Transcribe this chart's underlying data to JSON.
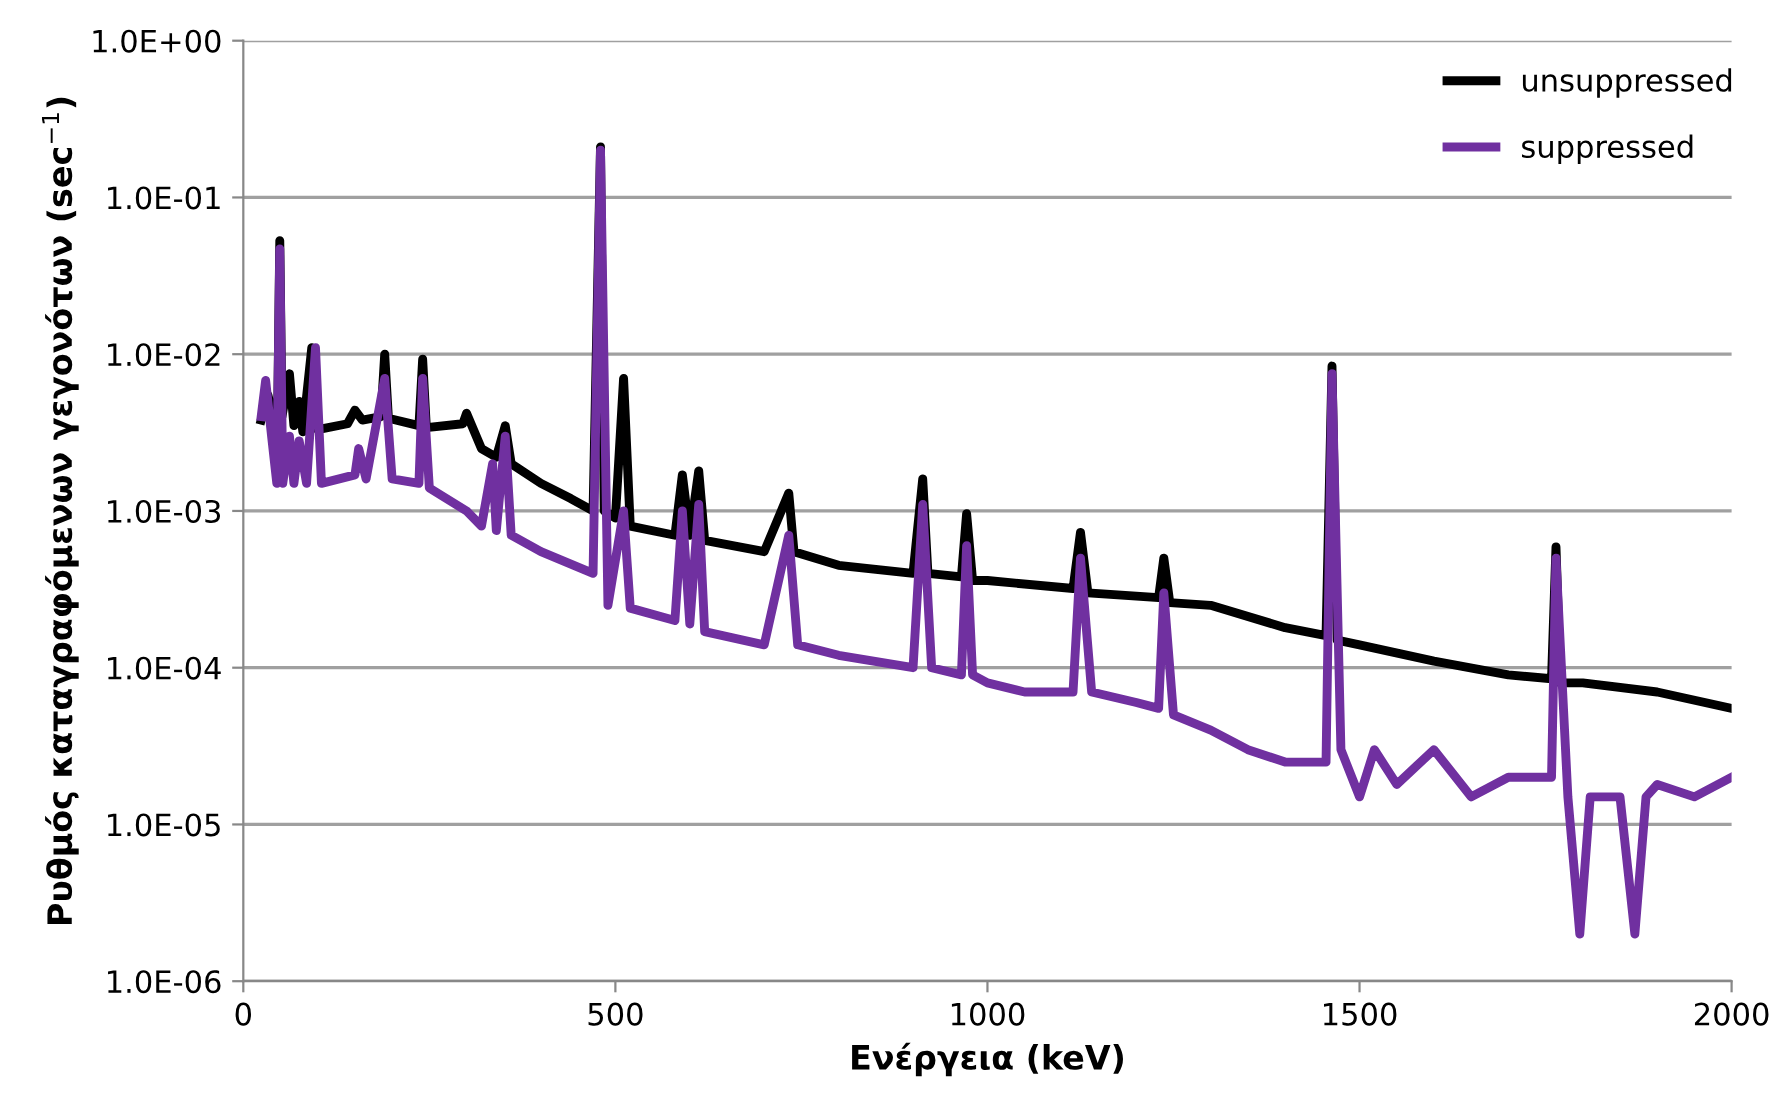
{
  "chart_data": {
    "type": "line",
    "xlabel": "Ενέργεια (keV)",
    "ylabel": "Ρυθμός καταγραφόμενων γεγονότων (sec$^{−1}$)",
    "log": "y",
    "grid": "y",
    "legend": "top right",
    "marker": "none",
    "line_style": "solid",
    "xlim": [
      0,
      2000
    ],
    "xticks": [
      0,
      500,
      1000,
      1500,
      2000
    ],
    "ylim": [
      1e-06,
      1
    ],
    "yticks": [
      {
        "value": 1e-06,
        "label": "1.0E-06"
      },
      {
        "value": 1e-05,
        "label": "1.0E-05"
      },
      {
        "value": 0.0001,
        "label": "1.0E-04"
      },
      {
        "value": 0.001,
        "label": "1.0E-03"
      },
      {
        "value": 0.01,
        "label": "1.0E-02"
      },
      {
        "value": 0.1,
        "label": "1.0E-01"
      },
      {
        "value": 1,
        "label": "1.0E+00"
      }
    ],
    "series": [
      {
        "name": "unsuppressed",
        "color": "#000000",
        "x": [
          24,
          33,
          40,
          46,
          49,
          52,
          62,
          68,
          75,
          80,
          92,
          100,
          140,
          150,
          160,
          185,
          190,
          195,
          236,
          241,
          246,
          295,
          300,
          320,
          340,
          352,
          360,
          400,
          440,
          470,
          480,
          485,
          500,
          511,
          520,
          580,
          590,
          600,
          612,
          620,
          700,
          733,
          740,
          800,
          900,
          913,
          920,
          965,
          972,
          980,
          1000,
          1115,
          1125,
          1135,
          1230,
          1237,
          1245,
          1300,
          1400,
          1455,
          1463,
          1470,
          1500,
          1600,
          1700,
          1758,
          1764,
          1770,
          1800,
          1900,
          2000
        ],
        "values": [
          0.0038,
          0.0055,
          0.004,
          0.0035,
          0.053,
          0.004,
          0.0075,
          0.0035,
          0.005,
          0.0032,
          0.011,
          0.0033,
          0.0036,
          0.0044,
          0.0038,
          0.004,
          0.01,
          0.0039,
          0.0035,
          0.0093,
          0.0034,
          0.0036,
          0.0042,
          0.0025,
          0.0022,
          0.0035,
          0.002,
          0.0015,
          0.0012,
          0.001,
          0.21,
          0.001,
          0.0009,
          0.007,
          0.0008,
          0.0007,
          0.0017,
          0.0007,
          0.0018,
          0.00065,
          0.00055,
          0.0013,
          0.00055,
          0.00045,
          0.0004,
          0.0016,
          0.0004,
          0.00038,
          0.00096,
          0.00036,
          0.00036,
          0.00032,
          0.00073,
          0.0003,
          0.00028,
          0.0005,
          0.00026,
          0.00025,
          0.00018,
          0.00016,
          0.0084,
          0.00015,
          0.00014,
          0.00011,
          9e-05,
          8.5e-05,
          0.00059,
          8e-05,
          8e-05,
          7e-05,
          5.5e-05
        ]
      },
      {
        "name": "suppressed",
        "color": "#7030a0",
        "x": [
          24,
          30,
          38,
          45,
          49,
          53,
          62,
          68,
          75,
          85,
          97,
          105,
          150,
          155,
          165,
          190,
          200,
          236,
          241,
          250,
          300,
          320,
          335,
          340,
          352,
          360,
          400,
          470,
          480,
          490,
          511,
          520,
          580,
          590,
          600,
          612,
          620,
          700,
          733,
          745,
          800,
          900,
          913,
          925,
          965,
          972,
          980,
          1000,
          1050,
          1115,
          1125,
          1140,
          1200,
          1230,
          1237,
          1250,
          1300,
          1350,
          1400,
          1455,
          1463,
          1475,
          1500,
          1520,
          1550,
          1600,
          1650,
          1700,
          1758,
          1764,
          1780,
          1796,
          1810,
          1850,
          1870,
          1885,
          1900,
          1950,
          2000
        ],
        "values": [
          0.004,
          0.0068,
          0.003,
          0.0015,
          0.047,
          0.0015,
          0.003,
          0.0015,
          0.0028,
          0.0015,
          0.011,
          0.0015,
          0.0017,
          0.0025,
          0.0016,
          0.007,
          0.0016,
          0.0015,
          0.007,
          0.0014,
          0.001,
          0.0008,
          0.002,
          0.00075,
          0.003,
          0.0007,
          0.00055,
          0.0004,
          0.2,
          0.00025,
          0.001,
          0.00024,
          0.0002,
          0.001,
          0.00019,
          0.0011,
          0.00017,
          0.00014,
          0.0007,
          0.00014,
          0.00012,
          0.0001,
          0.0011,
          0.0001,
          9e-05,
          0.0006,
          9e-05,
          8e-05,
          7e-05,
          7e-05,
          0.0005,
          7e-05,
          6e-05,
          5.5e-05,
          0.0003,
          5e-05,
          4e-05,
          3e-05,
          2.5e-05,
          2.5e-05,
          0.0075,
          3e-05,
          1.5e-05,
          3e-05,
          1.8e-05,
          3e-05,
          1.5e-05,
          2e-05,
          2e-05,
          0.0005,
          1.5e-05,
          2e-06,
          1.5e-05,
          1.5e-05,
          2e-06,
          1.5e-05,
          1.8e-05,
          1.5e-05,
          2e-05
        ]
      }
    ]
  }
}
